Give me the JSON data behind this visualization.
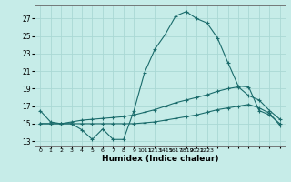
{
  "title": "",
  "xlabel": "Humidex (Indice chaleur)",
  "background_color": "#c6ece8",
  "grid_color": "#aad8d4",
  "line_color": "#1a6b6b",
  "xlim": [
    -0.5,
    23.5
  ],
  "ylim": [
    12.5,
    28.5
  ],
  "yticks": [
    13,
    15,
    17,
    19,
    21,
    23,
    25,
    27
  ],
  "line1_x": [
    0,
    1,
    2,
    3,
    4,
    5,
    6,
    7,
    8,
    9,
    10,
    11,
    12,
    13,
    14,
    15,
    16,
    17,
    18,
    19,
    20,
    21,
    22,
    23
  ],
  "line1_y": [
    16.5,
    15.2,
    15.0,
    15.0,
    14.3,
    13.2,
    14.4,
    13.2,
    13.2,
    16.5,
    20.8,
    23.5,
    25.2,
    27.3,
    27.8,
    27.0,
    26.5,
    24.8,
    22.0,
    19.3,
    19.2,
    16.5,
    16.0,
    15.0
  ],
  "line2_x": [
    0,
    1,
    2,
    3,
    4,
    5,
    6,
    7,
    8,
    9,
    10,
    11,
    12,
    13,
    14,
    15,
    16,
    17,
    18,
    19,
    20,
    21,
    22,
    23
  ],
  "line2_y": [
    15.0,
    15.0,
    15.0,
    15.2,
    15.4,
    15.5,
    15.6,
    15.7,
    15.8,
    16.0,
    16.3,
    16.6,
    17.0,
    17.4,
    17.7,
    18.0,
    18.3,
    18.7,
    19.0,
    19.2,
    18.2,
    17.7,
    16.5,
    15.5
  ],
  "line3_x": [
    0,
    1,
    2,
    3,
    4,
    5,
    6,
    7,
    8,
    9,
    10,
    11,
    12,
    13,
    14,
    15,
    16,
    17,
    18,
    19,
    20,
    21,
    22,
    23
  ],
  "line3_y": [
    15.0,
    15.0,
    15.0,
    15.0,
    15.0,
    15.0,
    15.0,
    15.0,
    15.0,
    15.0,
    15.1,
    15.2,
    15.4,
    15.6,
    15.8,
    16.0,
    16.3,
    16.6,
    16.8,
    17.0,
    17.2,
    16.8,
    16.2,
    14.8
  ]
}
